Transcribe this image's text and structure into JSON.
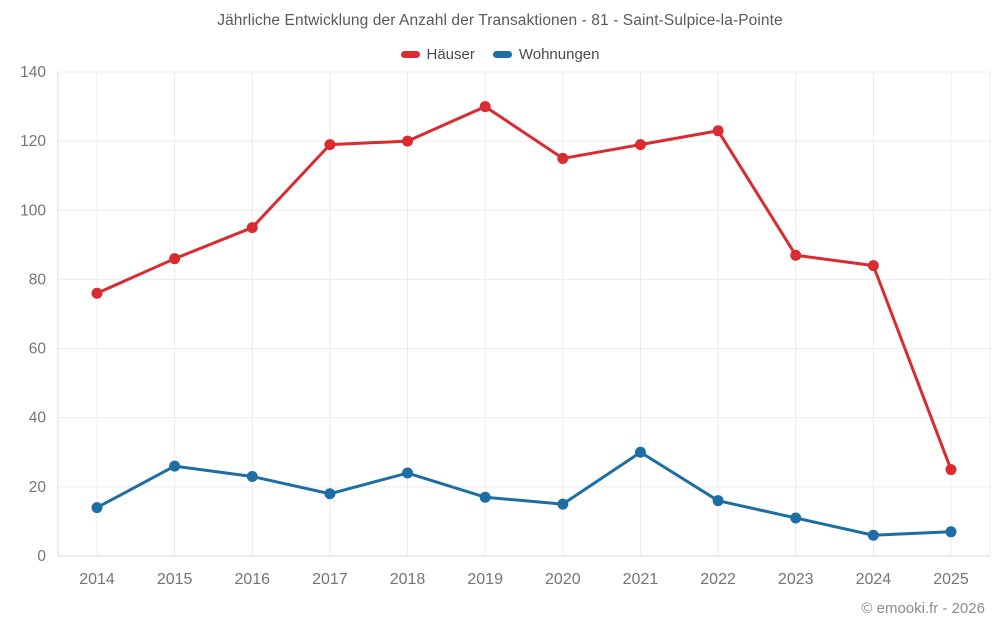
{
  "title": "Jährliche Entwicklung der Anzahl der Transaktionen - 81 - Saint-Sulpice-la-Pointe",
  "footer": "© emooki.fr - 2026",
  "colors": {
    "series_red": "#d92b30",
    "series_blue": "#1c6ea4",
    "grid": "#ececec",
    "axis_border": "#dadada",
    "tick_text": "#757575",
    "title_text": "#58595b",
    "legend_text": "#4a4a4a",
    "footer_text": "#8c8c8c",
    "background": "#ffffff"
  },
  "chart_data": {
    "type": "line",
    "title": "Jährliche Entwicklung der Anzahl der Transaktionen - 81 - Saint-Sulpice-la-Pointe",
    "categories": [
      "2014",
      "2015",
      "2016",
      "2017",
      "2018",
      "2019",
      "2020",
      "2021",
      "2022",
      "2023",
      "2024",
      "2025"
    ],
    "series": [
      {
        "name": "Häuser",
        "color": "#d92b30",
        "values": [
          76,
          86,
          95,
          119,
          120,
          130,
          115,
          119,
          123,
          87,
          84,
          25
        ]
      },
      {
        "name": "Wohnungen",
        "color": "#1c6ea4",
        "values": [
          14,
          26,
          23,
          18,
          24,
          17,
          15,
          30,
          16,
          11,
          6,
          7
        ]
      }
    ],
    "xlabel": "",
    "ylabel": "",
    "ylim": [
      0,
      140
    ],
    "ytick_step": 20,
    "yticks": [
      0,
      20,
      40,
      60,
      80,
      100,
      120,
      140
    ],
    "grid": true,
    "legend_position": "top"
  }
}
